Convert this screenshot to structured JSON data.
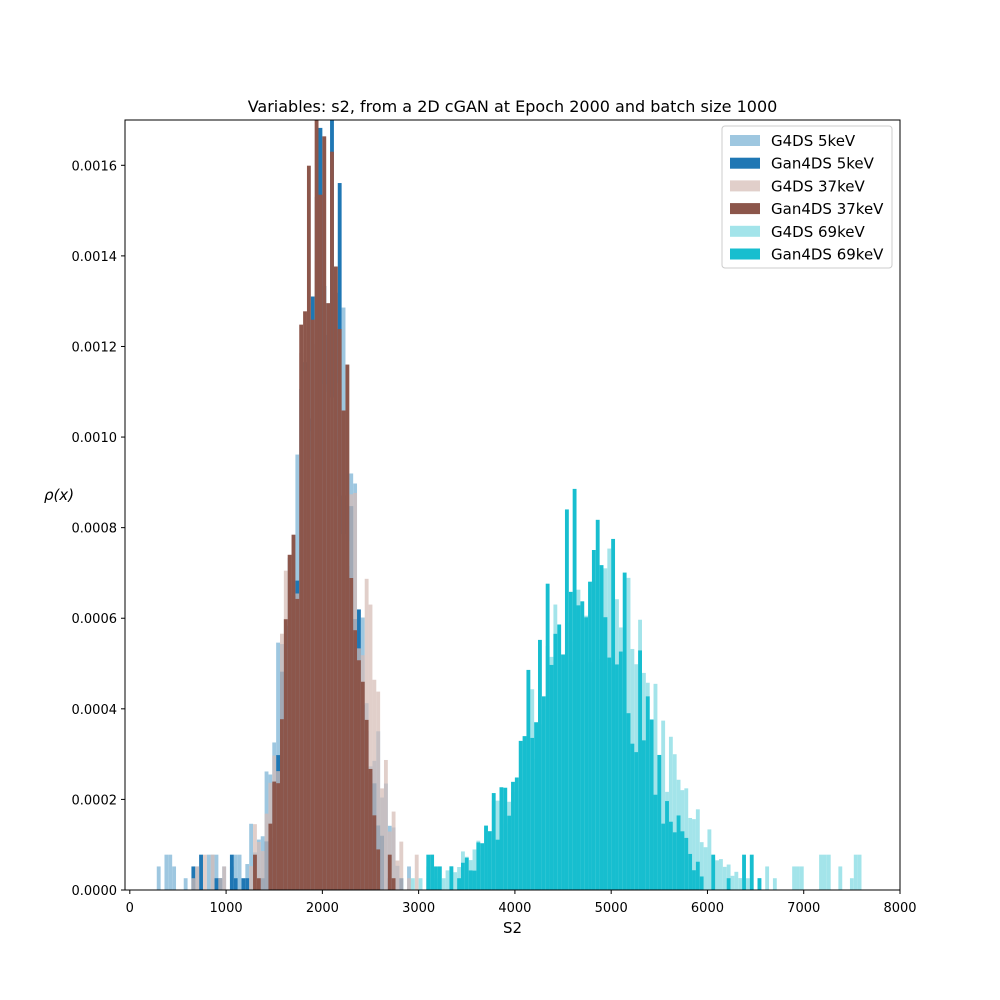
{
  "chart_data": {
    "type": "histogram",
    "title": "Variables: s2, from a 2D cGAN at Epoch 2000 and batch size 1000",
    "xlabel": "S2",
    "ylabel": "ρ(x)",
    "xlim": [
      -50,
      8000
    ],
    "ylim": [
      0,
      0.0017
    ],
    "xticks": [
      0,
      1000,
      2000,
      3000,
      4000,
      5000,
      6000,
      7000,
      8000
    ],
    "xtick_labels": [
      "0",
      "1000",
      "2000",
      "3000",
      "4000",
      "5000",
      "6000",
      "7000",
      "8000"
    ],
    "yticks": [
      0,
      0.0002,
      0.0004,
      0.0006,
      0.0008,
      0.001,
      0.0012,
      0.0014,
      0.0016
    ],
    "ytick_labels": [
      "0.0000",
      "0.0002",
      "0.0004",
      "0.0006",
      "0.0008",
      "0.0010",
      "0.0012",
      "0.0014",
      "0.0016"
    ],
    "grid": false,
    "legend_position": "top-right",
    "series": [
      {
        "name": "G4DS 5keV",
        "color": "#9ec7e0",
        "alpha": 1,
        "mean": 2000,
        "sd": 330,
        "bin_width": 40,
        "seed": 11,
        "noise": 0.28,
        "range": [
          300,
          3000
        ]
      },
      {
        "name": "Gan4DS 5keV",
        "color": "#1f77b4",
        "alpha": 1,
        "mean": 2010,
        "sd": 255,
        "bin_width": 40,
        "seed": 23,
        "noise": 0.2,
        "range": [
          650,
          3000
        ]
      },
      {
        "name": "G4DS 37keV",
        "color": "#d5bcb5",
        "alpha": 0.72,
        "mean": 2040,
        "sd": 330,
        "bin_width": 40,
        "seed": 37,
        "noise": 0.28,
        "range": [
          600,
          3200
        ]
      },
      {
        "name": "Gan4DS 37keV",
        "color": "#8c564b",
        "alpha": 1,
        "mean": 2010,
        "sd": 245,
        "bin_width": 40,
        "seed": 41,
        "noise": 0.2,
        "range": [
          1250,
          2750
        ]
      },
      {
        "name": "G4DS 69keV",
        "color": "#a3e4ea",
        "alpha": 1,
        "mean": 4820,
        "sd": 640,
        "bin_width": 40,
        "seed": 53,
        "noise": 0.25,
        "range": [
          2950,
          7650
        ]
      },
      {
        "name": "Gan4DS 69keV",
        "color": "#17becf",
        "alpha": 1,
        "mean": 4700,
        "sd": 520,
        "bin_width": 40,
        "seed": 67,
        "noise": 0.25,
        "range": [
          3100,
          6550
        ]
      }
    ]
  }
}
